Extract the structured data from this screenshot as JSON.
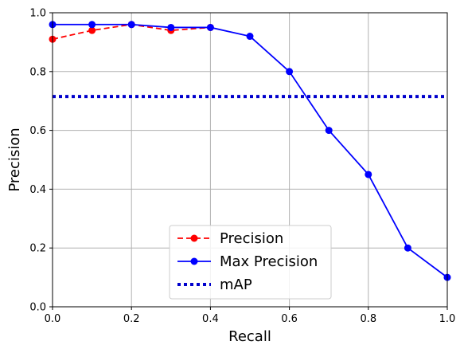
{
  "chart_data": {
    "type": "line",
    "title": "",
    "xlabel": "Recall",
    "ylabel": "Precision",
    "xlim": [
      0,
      1
    ],
    "ylim": [
      0,
      1
    ],
    "grid": true,
    "legend_position": "bottom-center",
    "x_ticks": [
      "0.0",
      "0.2",
      "0.4",
      "0.6",
      "0.8",
      "1.0"
    ],
    "y_ticks": [
      "0.0",
      "0.2",
      "0.4",
      "0.6",
      "0.8",
      "1.0"
    ],
    "series": [
      {
        "name": "Precision",
        "color": "#ff0000",
        "style": "dashed",
        "marker": "circle",
        "x": [
          0.0,
          0.1,
          0.2,
          0.3,
          0.4
        ],
        "y": [
          0.91,
          0.94,
          0.96,
          0.94,
          0.95
        ]
      },
      {
        "name": "Max Precision",
        "color": "#0000ff",
        "style": "solid",
        "marker": "circle",
        "x": [
          0.0,
          0.1,
          0.2,
          0.3,
          0.4,
          0.5,
          0.6,
          0.7,
          0.8,
          0.9,
          1.0
        ],
        "y": [
          0.96,
          0.96,
          0.96,
          0.95,
          0.95,
          0.92,
          0.8,
          0.6,
          0.45,
          0.2,
          0.1
        ]
      },
      {
        "name": "mAP",
        "color": "#0000cc",
        "style": "dotted",
        "marker": "none",
        "x": [
          0.0,
          1.0
        ],
        "y": [
          0.715,
          0.715
        ]
      }
    ]
  }
}
